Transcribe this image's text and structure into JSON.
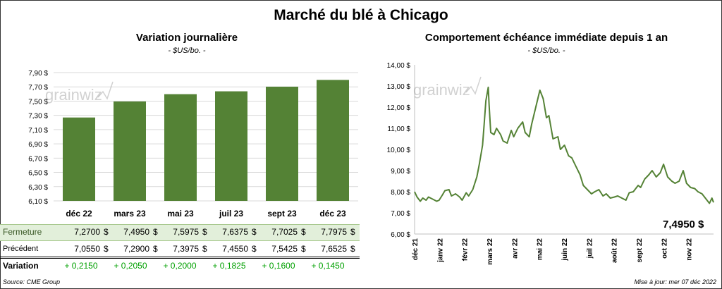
{
  "title": "Marché du blé à Chicago",
  "left_panel": {
    "title": "Variation  journalière",
    "subtitle": "- $US/bo. -",
    "watermark": "grainwiz"
  },
  "right_panel": {
    "title": "Comportement  échéance immédiate depuis 1 an",
    "subtitle": "- $US/bo. -",
    "watermark": "grainwiz",
    "last_value_label": "7,4950 $"
  },
  "table": {
    "dollar": "$",
    "rows": [
      {
        "label": "Fermeture",
        "values": [
          "7,2700",
          "7,4950",
          "7,5975",
          "7,6375",
          "7,7025",
          "7,7975"
        ]
      },
      {
        "label": "Précédent",
        "values": [
          "7,0550",
          "7,2900",
          "7,3975",
          "7,4550",
          "7,5425",
          "7,6525"
        ]
      },
      {
        "label": "Variation",
        "values": [
          "+ 0,2150",
          "+ 0,2050",
          "+ 0,2000",
          "+ 0,1825",
          "+ 0,1600",
          "+ 0,1450"
        ]
      }
    ]
  },
  "footer": {
    "source": "Source: CME Group",
    "updated": "Mise à jour: mer 07 déc 2022"
  },
  "colors": {
    "bar": "#548235",
    "line": "#548235",
    "grid": "#d9d9d9",
    "table_highlight": "#e2efda",
    "variation_text": "#00a000"
  },
  "chart_data": [
    {
      "type": "bar",
      "categories": [
        "déc 22",
        "mars 23",
        "mai 23",
        "juil 23",
        "sept 23",
        "déc 23"
      ],
      "values": [
        7.27,
        7.495,
        7.5975,
        7.6375,
        7.7025,
        7.7975
      ],
      "ylim": [
        6.1,
        7.9
      ],
      "yticks": [
        "6,10 $",
        "6,30 $",
        "6,50 $",
        "6,70 $",
        "6,90 $",
        "7,10 $",
        "7,30 $",
        "7,50 $",
        "7,70 $",
        "7,90 $"
      ],
      "grid": true
    },
    {
      "type": "line",
      "ylim": [
        6.0,
        14.0
      ],
      "yticks": [
        "6,00 $",
        "7,00 $",
        "8,00 $",
        "9,00 $",
        "10,00 $",
        "11,00 $",
        "12,00 $",
        "13,00 $",
        "14,00 $"
      ],
      "xticks": [
        "déc 21",
        "janv 22",
        "févr 22",
        "mars 22",
        "avr 22",
        "mai 22",
        "juin 22",
        "juil 22",
        "août 22",
        "sept 22",
        "oct 22",
        "nov 22"
      ],
      "x": [
        "2021-12-07",
        "2021-12-10",
        "2021-12-14",
        "2021-12-17",
        "2021-12-21",
        "2021-12-24",
        "2021-12-29",
        "2022-01-03",
        "2022-01-06",
        "2022-01-10",
        "2022-01-13",
        "2022-01-18",
        "2022-01-21",
        "2022-01-26",
        "2022-01-31",
        "2022-02-03",
        "2022-02-08",
        "2022-02-11",
        "2022-02-16",
        "2022-02-21",
        "2022-02-24",
        "2022-02-28",
        "2022-03-02",
        "2022-03-04",
        "2022-03-07",
        "2022-03-08",
        "2022-03-10",
        "2022-03-14",
        "2022-03-17",
        "2022-03-22",
        "2022-03-25",
        "2022-03-30",
        "2022-04-04",
        "2022-04-07",
        "2022-04-12",
        "2022-04-18",
        "2022-04-21",
        "2022-04-26",
        "2022-04-29",
        "2022-05-04",
        "2022-05-09",
        "2022-05-13",
        "2022-05-17",
        "2022-05-20",
        "2022-05-25",
        "2022-05-31",
        "2022-06-03",
        "2022-06-08",
        "2022-06-13",
        "2022-06-17",
        "2022-06-22",
        "2022-06-27",
        "2022-07-01",
        "2022-07-06",
        "2022-07-11",
        "2022-07-15",
        "2022-07-20",
        "2022-07-25",
        "2022-07-29",
        "2022-08-03",
        "2022-08-08",
        "2022-08-12",
        "2022-08-17",
        "2022-08-22",
        "2022-08-26",
        "2022-08-31",
        "2022-09-06",
        "2022-09-09",
        "2022-09-14",
        "2022-09-19",
        "2022-09-23",
        "2022-09-28",
        "2022-10-03",
        "2022-10-07",
        "2022-10-12",
        "2022-10-17",
        "2022-10-21",
        "2022-10-26",
        "2022-10-31",
        "2022-11-04",
        "2022-11-09",
        "2022-11-14",
        "2022-11-18",
        "2022-11-23",
        "2022-11-29",
        "2022-12-02",
        "2022-12-05",
        "2022-12-07"
      ],
      "y": [
        8.0,
        7.75,
        7.55,
        7.7,
        7.6,
        7.75,
        7.65,
        7.55,
        7.6,
        7.85,
        8.05,
        8.1,
        7.8,
        7.9,
        7.75,
        7.6,
        7.95,
        7.8,
        8.1,
        8.7,
        9.3,
        10.2,
        11.2,
        12.3,
        12.94,
        12.1,
        10.8,
        10.7,
        11.0,
        10.7,
        10.4,
        10.3,
        10.9,
        10.6,
        11.0,
        11.3,
        10.8,
        10.6,
        11.2,
        12.0,
        12.8,
        12.4,
        11.5,
        11.6,
        10.5,
        10.6,
        10.0,
        10.2,
        9.7,
        9.6,
        9.2,
        8.8,
        8.3,
        8.1,
        7.9,
        8.0,
        8.1,
        7.8,
        7.9,
        7.7,
        7.75,
        7.8,
        7.7,
        7.6,
        7.95,
        8.0,
        8.3,
        8.2,
        8.6,
        8.8,
        9.0,
        8.7,
        8.9,
        9.3,
        8.7,
        8.5,
        8.4,
        8.5,
        9.0,
        8.4,
        8.2,
        8.15,
        8.0,
        7.9,
        7.6,
        7.45,
        7.7,
        7.495
      ]
    }
  ]
}
